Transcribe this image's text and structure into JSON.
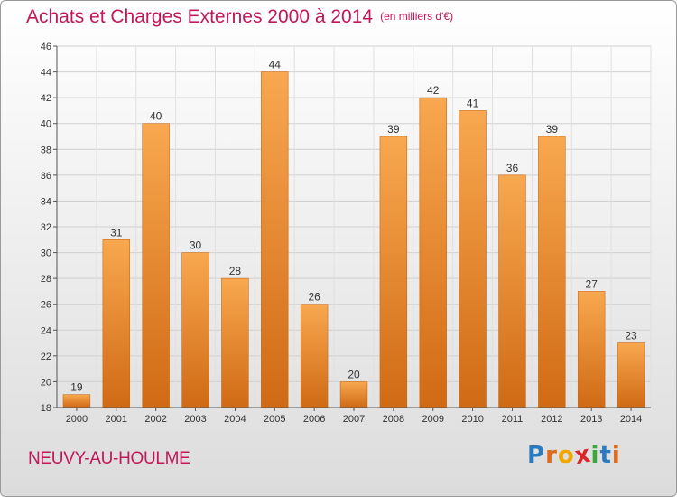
{
  "title": "Achats et Charges Externes 2000 à 2014",
  "subtitle": "(en milliers d'€)",
  "commune": "NEUVY-AU-HOULME",
  "logo": {
    "letters": [
      "P",
      "r",
      "o",
      "x",
      "i",
      "t",
      "i"
    ],
    "colors": [
      "#2a7ac0",
      "#e06a1a",
      "#f0a800",
      "#d9262b",
      "#3aa83a",
      "#2a7ac0",
      "#e06a1a"
    ]
  },
  "colors": {
    "bar_light": "#f6a24c",
    "bar_dark": "#d06a14",
    "title": "#c0185a"
  },
  "chart_data": {
    "type": "bar",
    "categories": [
      "2000",
      "2001",
      "2002",
      "2003",
      "2004",
      "2005",
      "2006",
      "2007",
      "2008",
      "2009",
      "2010",
      "2011",
      "2012",
      "2013",
      "2014"
    ],
    "values": [
      19,
      31,
      40,
      30,
      28,
      44,
      26,
      20,
      39,
      42,
      41,
      36,
      39,
      27,
      23
    ],
    "ylim": [
      18,
      46
    ],
    "yticks": [
      18,
      20,
      22,
      24,
      26,
      28,
      30,
      32,
      34,
      36,
      38,
      40,
      42,
      44,
      46
    ],
    "grid": true,
    "data_labels": true
  }
}
